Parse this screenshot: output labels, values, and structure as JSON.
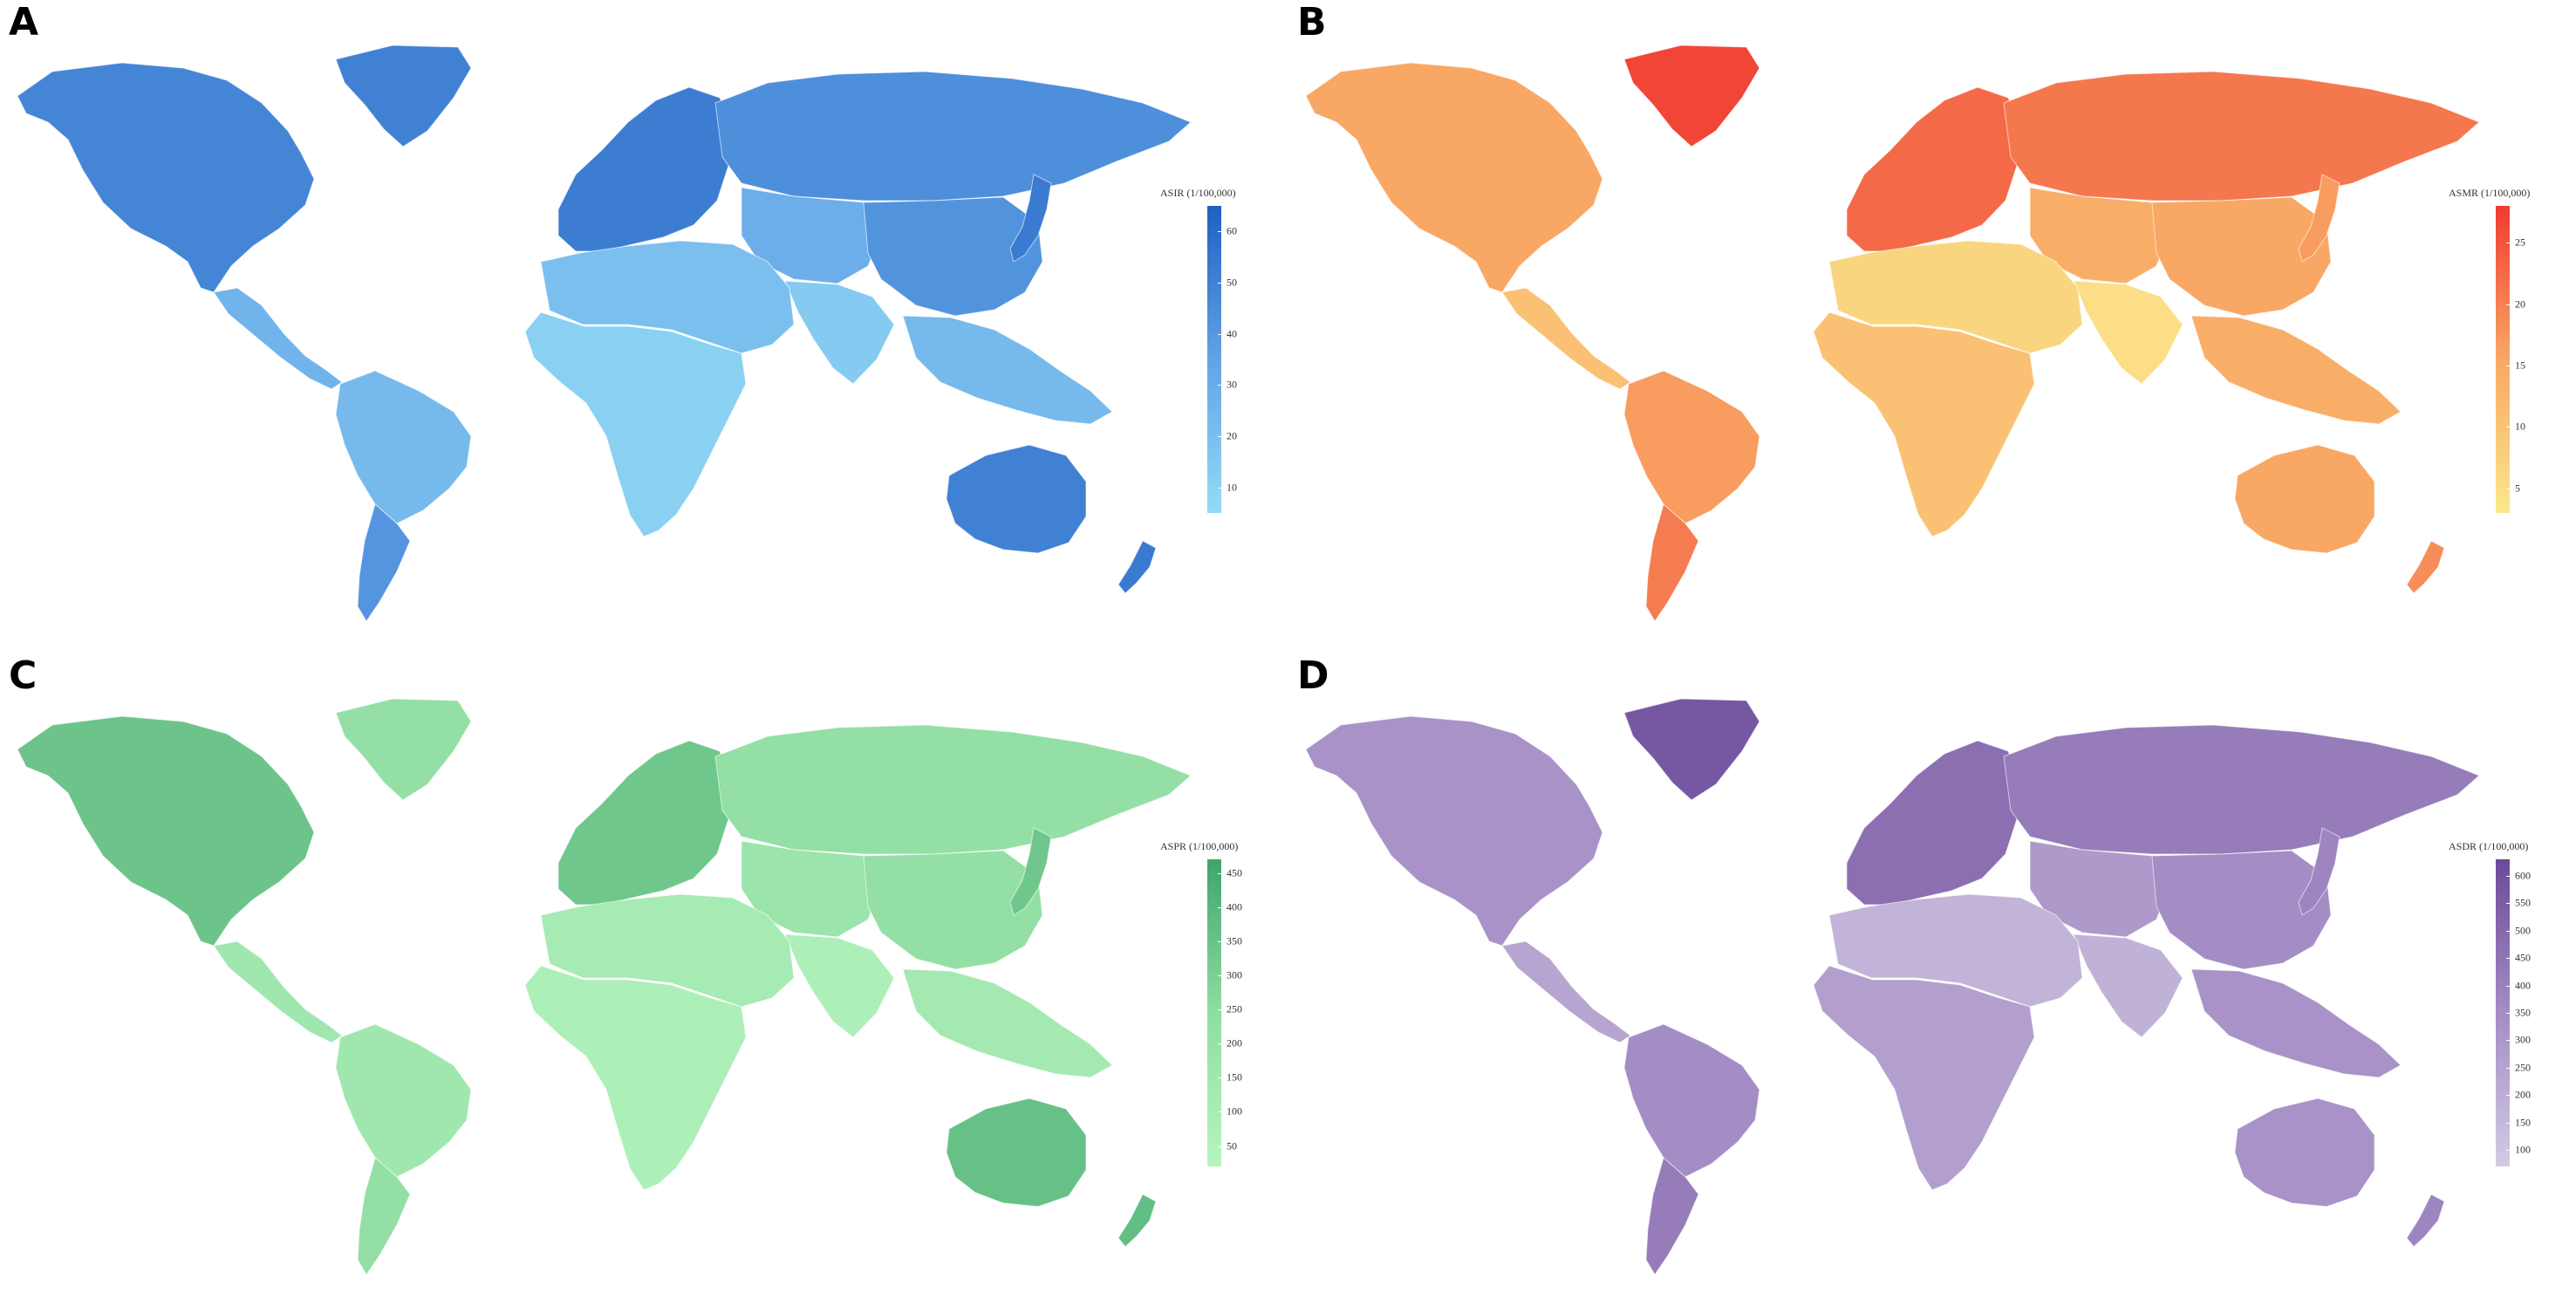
{
  "panels": [
    {
      "letter": "A",
      "legend_title": "ASIR (1/100,000)",
      "ticks": [
        "60",
        "50",
        "40",
        "30",
        "20",
        "10"
      ],
      "tick_values": [
        60,
        50,
        40,
        30,
        20,
        10
      ],
      "range": [
        5,
        65
      ],
      "colors": {
        "low": "#93dbf6",
        "mid": "#62a3e6",
        "high": "#1f5fc2"
      },
      "region_levels": {
        "north_america": 0.72,
        "greenland": 0.75,
        "central_america": 0.35,
        "south_america": 0.3,
        "southern_cone": 0.6,
        "europe": 0.78,
        "russia": 0.65,
        "central_asia": 0.4,
        "china": 0.62,
        "japan": 0.8,
        "south_asia": 0.15,
        "mena": 0.25,
        "africa": 0.1,
        "se_asia": 0.3,
        "australia": 0.75,
        "new_zealand": 0.8
      }
    },
    {
      "letter": "B",
      "legend_title": "ASMR (1/100,000)",
      "ticks": [
        "25",
        "20",
        "15",
        "10",
        "5"
      ],
      "tick_values": [
        25,
        20,
        15,
        10,
        5
      ],
      "range": [
        3,
        28
      ],
      "colors": {
        "low": "#fbe88b",
        "mid": "#f9a764",
        "high": "#f03a32"
      },
      "region_levels": {
        "north_america": 0.5,
        "greenland": 0.95,
        "central_america": 0.3,
        "south_america": 0.55,
        "southern_cone": 0.7,
        "europe": 0.78,
        "russia": 0.72,
        "central_asia": 0.45,
        "china": 0.5,
        "japan": 0.55,
        "south_asia": 0.08,
        "mena": 0.15,
        "africa": 0.3,
        "se_asia": 0.45,
        "australia": 0.5,
        "new_zealand": 0.62
      }
    },
    {
      "letter": "C",
      "legend_title": "ASPR (1/100,000)",
      "ticks": [
        "450",
        "400",
        "350",
        "300",
        "250",
        "200",
        "150",
        "100",
        "50"
      ],
      "tick_values": [
        450,
        400,
        350,
        300,
        250,
        200,
        150,
        100,
        50
      ],
      "range": [
        20,
        470
      ],
      "colors": {
        "low": "#b6f5bf",
        "mid": "#8fdda2",
        "high": "#3fa56c"
      },
      "region_levels": {
        "north_america": 0.72,
        "greenland": 0.45,
        "central_america": 0.3,
        "south_america": 0.3,
        "southern_cone": 0.45,
        "europe": 0.7,
        "russia": 0.45,
        "central_asia": 0.35,
        "china": 0.45,
        "japan": 0.7,
        "south_asia": 0.12,
        "mena": 0.2,
        "africa": 0.12,
        "se_asia": 0.25,
        "australia": 0.75,
        "new_zealand": 0.78
      }
    },
    {
      "letter": "D",
      "legend_title": "ASDR (1/100,000)",
      "ticks": [
        "600",
        "550",
        "500",
        "450",
        "400",
        "350",
        "300",
        "250",
        "200",
        "150",
        "100"
      ],
      "tick_values": [
        600,
        550,
        500,
        450,
        400,
        350,
        300,
        250,
        200,
        150,
        100
      ],
      "range": [
        70,
        630
      ],
      "colors": {
        "low": "#d2cbe4",
        "mid": "#a48cc4",
        "high": "#6b4a98"
      },
      "region_levels": {
        "north_america": 0.45,
        "greenland": 0.9,
        "central_america": 0.3,
        "south_america": 0.5,
        "southern_cone": 0.62,
        "europe": 0.72,
        "russia": 0.62,
        "central_asia": 0.4,
        "china": 0.5,
        "japan": 0.55,
        "south_asia": 0.2,
        "mena": 0.18,
        "africa": 0.35,
        "se_asia": 0.45,
        "australia": 0.45,
        "new_zealand": 0.55
      }
    }
  ]
}
